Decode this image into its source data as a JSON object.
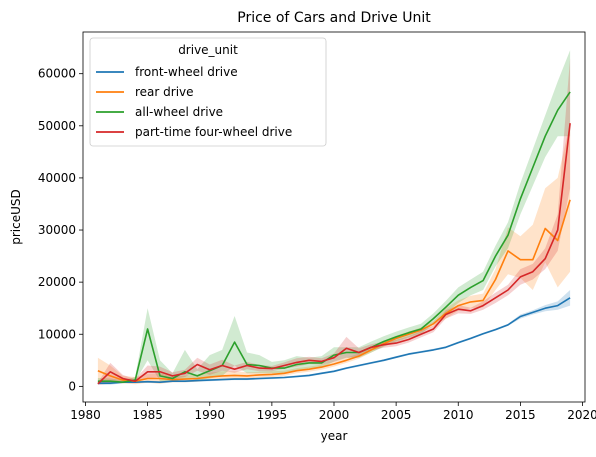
{
  "chart_data": {
    "type": "line",
    "title": "Price of Cars and Drive Unit",
    "xlabel": "year",
    "ylabel": "priceUSD",
    "xlim": [
      1979.8,
      2020.2
    ],
    "ylim": [
      -3000,
      68000
    ],
    "x_ticks": [
      1980,
      1985,
      1990,
      1995,
      2000,
      2005,
      2010,
      2015,
      2020
    ],
    "y_ticks": [
      0,
      10000,
      20000,
      30000,
      40000,
      50000,
      60000
    ],
    "grid": false,
    "legend": {
      "title": "drive_unit",
      "placement": "upper-left"
    },
    "series": [
      {
        "name": "front-wheel drive",
        "color": "#1f77b4",
        "x": [
          1981,
          1982,
          1983,
          1984,
          1985,
          1986,
          1987,
          1988,
          1989,
          1990,
          1991,
          1992,
          1993,
          1994,
          1995,
          1996,
          1997,
          1998,
          1999,
          2000,
          2001,
          2002,
          2003,
          2004,
          2005,
          2006,
          2007,
          2008,
          2009,
          2010,
          2011,
          2012,
          2013,
          2014,
          2015,
          2016,
          2017,
          2018,
          2019
        ],
        "values": [
          600,
          600,
          800,
          800,
          900,
          800,
          1000,
          1000,
          1100,
          1200,
          1300,
          1400,
          1400,
          1500,
          1600,
          1700,
          1900,
          2100,
          2500,
          2900,
          3500,
          4000,
          4500,
          5000,
          5600,
          6200,
          6600,
          7000,
          7500,
          8400,
          9200,
          10100,
          10900,
          11800,
          13400,
          14200,
          15000,
          15500,
          17000
        ],
        "lower": [
          300,
          300,
          600,
          600,
          700,
          600,
          800,
          800,
          900,
          1000,
          1100,
          1200,
          1200,
          1300,
          1400,
          1500,
          1700,
          1900,
          2300,
          2700,
          3300,
          3800,
          4300,
          4800,
          5400,
          6000,
          6400,
          6800,
          7300,
          8200,
          9000,
          9900,
          10700,
          11600,
          13000,
          13800,
          14400,
          14700,
          15500
        ],
        "upper": [
          900,
          900,
          1000,
          1000,
          1100,
          1000,
          1200,
          1200,
          1300,
          1400,
          1500,
          1600,
          1600,
          1700,
          1800,
          1900,
          2100,
          2300,
          2700,
          3100,
          3700,
          4200,
          4700,
          5200,
          5800,
          6400,
          6800,
          7200,
          7700,
          8600,
          9400,
          10300,
          11100,
          12000,
          13800,
          14600,
          15600,
          16300,
          18500
        ]
      },
      {
        "name": "rear drive",
        "color": "#ff7f0e",
        "x": [
          1981,
          1982,
          1983,
          1984,
          1985,
          1986,
          1987,
          1988,
          1989,
          1990,
          1991,
          1992,
          1993,
          1994,
          1995,
          1996,
          1997,
          1998,
          1999,
          2000,
          2001,
          2002,
          2003,
          2004,
          2005,
          2006,
          2007,
          2008,
          2009,
          2010,
          2011,
          2012,
          2013,
          2014,
          2015,
          2016,
          2017,
          2018,
          2019
        ],
        "values": [
          3000,
          2000,
          1200,
          1000,
          1500,
          1500,
          1300,
          1400,
          1500,
          1800,
          2000,
          2100,
          2000,
          2200,
          2300,
          2500,
          3000,
          3300,
          3700,
          4300,
          5000,
          5800,
          7000,
          8200,
          9200,
          10000,
          10800,
          12000,
          14000,
          15500,
          16200,
          16500,
          20500,
          26000,
          24300,
          24300,
          30300,
          28000,
          35800
        ],
        "lower": [
          800,
          600,
          600,
          400,
          700,
          500,
          800,
          800,
          900,
          1200,
          1300,
          1500,
          1300,
          1700,
          1800,
          2000,
          2500,
          2800,
          3200,
          3800,
          4500,
          5300,
          6500,
          7700,
          8700,
          9500,
          10300,
          11500,
          13000,
          14500,
          15000,
          15200,
          18500,
          21500,
          20800,
          18500,
          23800,
          19000,
          22000
        ],
        "upper": [
          5500,
          4000,
          2000,
          1800,
          2400,
          2500,
          1900,
          2000,
          2300,
          2600,
          2900,
          2900,
          2700,
          2800,
          2900,
          3000,
          3500,
          3800,
          4200,
          4800,
          5500,
          6300,
          7500,
          8700,
          9700,
          10500,
          11300,
          12500,
          15000,
          16500,
          17400,
          17800,
          22500,
          30500,
          28800,
          31000,
          38000,
          40000,
          50500
        ]
      },
      {
        "name": "all-wheel drive",
        "color": "#2ca02c",
        "x": [
          1981,
          1982,
          1983,
          1984,
          1985,
          1986,
          1987,
          1988,
          1989,
          1990,
          1991,
          1992,
          1993,
          1994,
          1995,
          1996,
          1997,
          1998,
          1999,
          2000,
          2001,
          2002,
          2003,
          2004,
          2005,
          2006,
          2007,
          2008,
          2009,
          2010,
          2011,
          2012,
          2013,
          2014,
          2015,
          2016,
          2017,
          2018,
          2019
        ],
        "values": [
          1000,
          1000,
          800,
          1200,
          11000,
          2000,
          1500,
          2800,
          2000,
          3000,
          4000,
          8500,
          4200,
          4000,
          3500,
          3500,
          4200,
          4500,
          4500,
          6000,
          6500,
          6500,
          7500,
          8600,
          9500,
          10300,
          11000,
          13000,
          15200,
          17500,
          19000,
          20300,
          25000,
          29000,
          36000,
          42000,
          48000,
          53000,
          56500
        ],
        "lower": [
          500,
          700,
          600,
          900,
          5000,
          1000,
          900,
          1500,
          1200,
          1500,
          2000,
          4000,
          2500,
          2500,
          2500,
          2500,
          3000,
          3500,
          3500,
          4800,
          5500,
          5500,
          6500,
          7600,
          8500,
          9300,
          10000,
          12000,
          14000,
          16000,
          17500,
          18500,
          23000,
          26500,
          33000,
          38500,
          44000,
          48000,
          48000
        ],
        "upper": [
          1600,
          1500,
          1200,
          1800,
          15000,
          5000,
          2500,
          7000,
          3300,
          6000,
          7000,
          13500,
          6500,
          6000,
          4700,
          5000,
          5800,
          5500,
          5800,
          7500,
          7500,
          7500,
          8600,
          9600,
          10500,
          11300,
          12000,
          14000,
          16400,
          19000,
          20500,
          22000,
          27000,
          31500,
          39000,
          45500,
          52000,
          58500,
          64500
        ]
      },
      {
        "name": "part-time four-wheel drive",
        "color": "#d62728",
        "x": [
          1981,
          1982,
          1983,
          1984,
          1985,
          1986,
          1987,
          1988,
          1989,
          1990,
          1991,
          1992,
          1993,
          1994,
          1995,
          1996,
          1997,
          1998,
          1999,
          2000,
          2001,
          2002,
          2003,
          2004,
          2005,
          2006,
          2007,
          2008,
          2009,
          2010,
          2011,
          2012,
          2013,
          2014,
          2015,
          2016,
          2017,
          2018,
          2019
        ],
        "values": [
          500,
          2800,
          1500,
          1000,
          2800,
          2800,
          2000,
          2500,
          4200,
          3200,
          4000,
          3300,
          4000,
          3500,
          3400,
          4000,
          4600,
          5000,
          4800,
          5500,
          7300,
          6500,
          7500,
          8000,
          8300,
          9000,
          10000,
          11000,
          13800,
          14800,
          14500,
          15500,
          17000,
          18500,
          21000,
          22000,
          24500,
          30000,
          50500
        ],
        "lower": [
          300,
          500,
          900,
          800,
          1500,
          1800,
          1400,
          1800,
          3000,
          2200,
          3000,
          2600,
          3300,
          2900,
          2900,
          3400,
          3800,
          4300,
          4200,
          4700,
          5500,
          5700,
          6900,
          7400,
          7700,
          8400,
          9400,
          10400,
          13000,
          14000,
          13900,
          14700,
          16000,
          17500,
          19500,
          20500,
          22500,
          26000,
          38000
        ],
        "upper": [
          700,
          4500,
          2200,
          1400,
          4000,
          3800,
          2700,
          3200,
          5500,
          4200,
          5100,
          4000,
          4700,
          4100,
          3900,
          4600,
          5400,
          5700,
          5400,
          6300,
          9500,
          7300,
          8100,
          8600,
          8900,
          9600,
          10600,
          11600,
          14600,
          15600,
          15100,
          16300,
          18000,
          19500,
          22500,
          23500,
          26500,
          33000,
          63000
        ]
      }
    ]
  }
}
